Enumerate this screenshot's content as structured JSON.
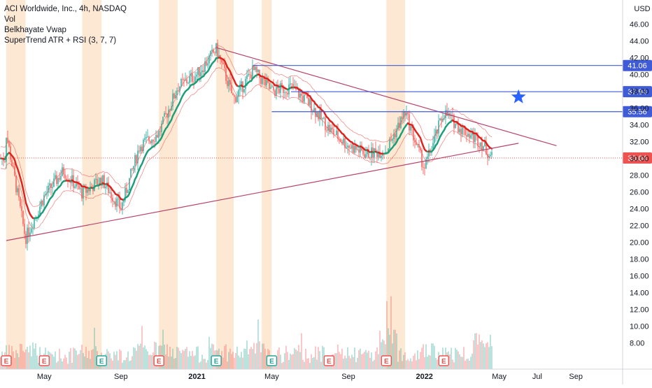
{
  "legend": {
    "symbol_line": "ACI Worldwide, Inc., 4h, NASDAQ",
    "indicators": [
      "Vol",
      "Belkhayate Vwap",
      "SuperTrend ATR + RSI (3, 7, 7)"
    ]
  },
  "currency": "USD",
  "colors": {
    "up": "#26a69a",
    "down": "#ef5350",
    "supertrend_up": "#1b9e77",
    "supertrend_down": "#e0211d",
    "trendline": "#b5436b",
    "hline": "#3f5bd6",
    "last_price": "#ef5350",
    "session_band": "#fde9d3",
    "earnings": "#ef5350",
    "dividend": "#26a69a",
    "star": "#2962ff"
  },
  "chart_data": {
    "type": "candlestick",
    "x_axis": {
      "tick_labels": [
        "May",
        "Sep",
        "2021",
        "May",
        "Sep",
        "2022",
        "May",
        "Jul",
        "Sep"
      ]
    },
    "y_axis": {
      "range": [
        6.8,
        47.2
      ],
      "tick_labels": [
        "8.00",
        "10.00",
        "12.00",
        "14.00",
        "16.00",
        "18.00",
        "20.00",
        "22.00",
        "24.00",
        "26.00",
        "28.00",
        "30.00",
        "32.00",
        "34.00",
        "36.00",
        "38.00",
        "40.00",
        "42.00",
        "44.00",
        "46.00"
      ]
    },
    "price_path": [
      {
        "date": "2020-03",
        "price": 33.0
      },
      {
        "date": "2020-04",
        "price": 20.5
      },
      {
        "date": "2020-05",
        "price": 25.5
      },
      {
        "date": "2020-06",
        "price": 28.5
      },
      {
        "date": "2020-07",
        "price": 25.8
      },
      {
        "date": "2020-08",
        "price": 27.5
      },
      {
        "date": "2020-09",
        "price": 24.0
      },
      {
        "date": "2020-10",
        "price": 31.5
      },
      {
        "date": "2020-11",
        "price": 33.0
      },
      {
        "date": "2020-12",
        "price": 38.5
      },
      {
        "date": "2021-01",
        "price": 40.0
      },
      {
        "date": "2021-02",
        "price": 43.0
      },
      {
        "date": "2021-03",
        "price": 37.0
      },
      {
        "date": "2021-04",
        "price": 40.5
      },
      {
        "date": "2021-05",
        "price": 38.0
      },
      {
        "date": "2021-06",
        "price": 38.5
      },
      {
        "date": "2021-07",
        "price": 36.5
      },
      {
        "date": "2021-08",
        "price": 33.5
      },
      {
        "date": "2021-09",
        "price": 31.5
      },
      {
        "date": "2021-10",
        "price": 30.5
      },
      {
        "date": "2021-11",
        "price": 31.0
      },
      {
        "date": "2021-12",
        "price": 35.5
      },
      {
        "date": "2022-01",
        "price": 28.8
      },
      {
        "date": "2022-02",
        "price": 35.5
      },
      {
        "date": "2022-03",
        "price": 33.5
      },
      {
        "date": "2022-04",
        "price": 32.0
      },
      {
        "date": "2022-04-20",
        "price": 30.0
      }
    ],
    "volume_relative": [
      0.3,
      0.5,
      0.25,
      0.2,
      0.35,
      0.3,
      0.2,
      0.4,
      0.45,
      0.3,
      0.25,
      0.4,
      0.3,
      0.5,
      0.2,
      0.3,
      0.25,
      0.35,
      0.2,
      0.3,
      1.0,
      0.3,
      0.4,
      0.25,
      0.3,
      0.9
    ],
    "trendlines": [
      {
        "name": "upper",
        "from": {
          "date": "2021-02",
          "price": 43.2
        },
        "to": {
          "date": "2022-08",
          "price": 31.5
        }
      },
      {
        "name": "lower",
        "from": {
          "date": "2020-03",
          "price": 20.2
        },
        "to": {
          "date": "2022-06",
          "price": 31.8
        }
      }
    ],
    "horizontal_levels": [
      {
        "price": 41.06,
        "label": "41.06",
        "from_date": "2021-04"
      },
      {
        "price": 37.94,
        "label": "37.94",
        "from_date": "2021-06"
      },
      {
        "price": 35.56,
        "label": "35.56",
        "from_date": "2021-05"
      }
    ],
    "last_price": {
      "price": 30.04,
      "label": "30.04"
    },
    "session_bands": [
      {
        "from": "2020-03",
        "to": "2020-04"
      },
      {
        "from": "2020-07",
        "to": "2020-08"
      },
      {
        "from": "2020-11",
        "to": "2020-12"
      },
      {
        "from": "2021-02",
        "to": "2021-03"
      },
      {
        "from": "2021-04-15",
        "to": "2021-05"
      },
      {
        "from": "2021-11",
        "to": "2021-12"
      }
    ],
    "events": [
      {
        "type": "earnings",
        "label": "E",
        "date": "2020-03"
      },
      {
        "type": "earnings",
        "label": "E",
        "date": "2020-05"
      },
      {
        "type": "dividend",
        "label": "E",
        "date": "2020-08"
      },
      {
        "type": "earnings",
        "label": "E",
        "date": "2020-11"
      },
      {
        "type": "dividend",
        "label": "E",
        "date": "2021-02"
      },
      {
        "type": "dividend",
        "label": "E",
        "date": "2021-05"
      },
      {
        "type": "earnings",
        "label": "E",
        "date": "2021-08"
      },
      {
        "type": "earnings",
        "label": "E",
        "date": "2021-11"
      },
      {
        "type": "earnings",
        "label": "E",
        "date": "2022-02"
      }
    ],
    "annotation": {
      "type": "star",
      "date": "2022-06",
      "price": 37.3
    },
    "grid": false,
    "legend_position": "top-left"
  }
}
